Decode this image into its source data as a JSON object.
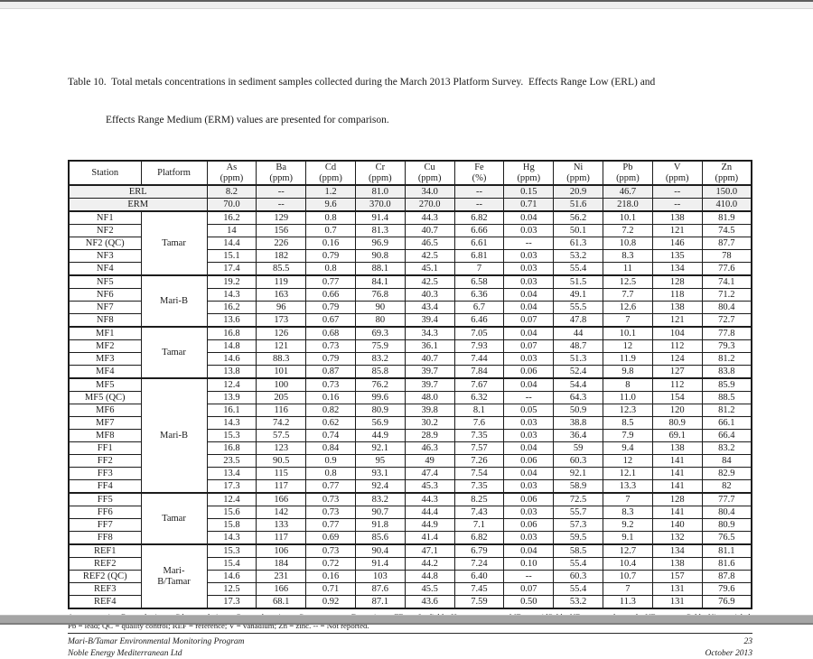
{
  "document": {
    "title": {
      "line1": "Table 10.  Total metals concentrations in sediment samples collected during the March 2013 Platform Survey.  Effects Range Low (ERL) and",
      "line2": "Effects Range Medium (ERM) values are presented for comparison."
    },
    "table": {
      "columns": [
        {
          "label": "Station",
          "unit": ""
        },
        {
          "label": "Platform",
          "unit": ""
        },
        {
          "label": "As",
          "unit": "(ppm)"
        },
        {
          "label": "Ba",
          "unit": "(ppm)"
        },
        {
          "label": "Cd",
          "unit": "(ppm)"
        },
        {
          "label": "Cr",
          "unit": "(ppm)"
        },
        {
          "label": "Cu",
          "unit": "(ppm)"
        },
        {
          "label": "Fe",
          "unit": "(%)"
        },
        {
          "label": "Hg",
          "unit": "(ppm)"
        },
        {
          "label": "Ni",
          "unit": "(ppm)"
        },
        {
          "label": "Pb",
          "unit": "(ppm)"
        },
        {
          "label": "V",
          "unit": "(ppm)"
        },
        {
          "label": "Zn",
          "unit": "(ppm)"
        }
      ],
      "reference_rows": [
        {
          "label": "ERL",
          "values": [
            "8.2",
            "--",
            "1.2",
            "81.0",
            "34.0",
            "--",
            "0.15",
            "20.9",
            "46.7",
            "--",
            "150.0"
          ]
        },
        {
          "label": "ERM",
          "values": [
            "70.0",
            "--",
            "9.6",
            "370.0",
            "270.0",
            "--",
            "0.71",
            "51.6",
            "218.0",
            "--",
            "410.0"
          ]
        }
      ],
      "groups": [
        {
          "platform": "Tamar",
          "rows": [
            {
              "station": "NF1",
              "values": [
                "16.2",
                "129",
                "0.8",
                "91.4",
                "44.3",
                "6.82",
                "0.04",
                "56.2",
                "10.1",
                "138",
                "81.9"
              ]
            },
            {
              "station": "NF2",
              "values": [
                "14",
                "156",
                "0.7",
                "81.3",
                "40.7",
                "6.66",
                "0.03",
                "50.1",
                "7.2",
                "121",
                "74.5"
              ]
            },
            {
              "station": "NF2 (QC)",
              "values": [
                "14.4",
                "226",
                "0.16",
                "96.9",
                "46.5",
                "6.61",
                "--",
                "61.3",
                "10.8",
                "146",
                "87.7"
              ]
            },
            {
              "station": "NF3",
              "values": [
                "15.1",
                "182",
                "0.79",
                "90.8",
                "42.5",
                "6.81",
                "0.03",
                "53.2",
                "8.3",
                "135",
                "78"
              ]
            },
            {
              "station": "NF4",
              "values": [
                "17.4",
                "85.5",
                "0.8",
                "88.1",
                "45.1",
                "7",
                "0.03",
                "55.4",
                "11",
                "134",
                "77.6"
              ]
            }
          ]
        },
        {
          "platform": "Mari-B",
          "rows": [
            {
              "station": "NF5",
              "values": [
                "19.2",
                "119",
                "0.77",
                "84.1",
                "42.5",
                "6.58",
                "0.03",
                "51.5",
                "12.5",
                "128",
                "74.1"
              ]
            },
            {
              "station": "NF6",
              "values": [
                "14.3",
                "163",
                "0.66",
                "76.8",
                "40.3",
                "6.36",
                "0.04",
                "49.1",
                "7.7",
                "118",
                "71.2"
              ]
            },
            {
              "station": "NF7",
              "values": [
                "16.2",
                "96",
                "0.79",
                "90",
                "43.4",
                "6.7",
                "0.04",
                "55.5",
                "12.6",
                "138",
                "80.4"
              ]
            },
            {
              "station": "NF8",
              "values": [
                "13.6",
                "173",
                "0.67",
                "80",
                "39.4",
                "6.46",
                "0.07",
                "47.8",
                "7",
                "121",
                "72.7"
              ]
            }
          ]
        },
        {
          "platform": "Tamar",
          "rows": [
            {
              "station": "MF1",
              "values": [
                "16.8",
                "126",
                "0.68",
                "69.3",
                "34.3",
                "7.05",
                "0.04",
                "44",
                "10.1",
                "104",
                "77.8"
              ]
            },
            {
              "station": "MF2",
              "values": [
                "14.8",
                "121",
                "0.73",
                "75.9",
                "36.1",
                "7.93",
                "0.07",
                "48.7",
                "12",
                "112",
                "79.3"
              ]
            },
            {
              "station": "MF3",
              "values": [
                "14.6",
                "88.3",
                "0.79",
                "83.2",
                "40.7",
                "7.44",
                "0.03",
                "51.3",
                "11.9",
                "124",
                "81.2"
              ]
            },
            {
              "station": "MF4",
              "values": [
                "13.8",
                "101",
                "0.87",
                "85.8",
                "39.7",
                "7.84",
                "0.06",
                "52.4",
                "9.8",
                "127",
                "83.8"
              ]
            }
          ]
        },
        {
          "platform": "Mari-B",
          "rows": [
            {
              "station": "MF5",
              "values": [
                "12.4",
                "100",
                "0.73",
                "76.2",
                "39.7",
                "7.67",
                "0.04",
                "54.4",
                "8",
                "112",
                "85.9"
              ]
            },
            {
              "station": "MF5 (QC)",
              "values": [
                "13.9",
                "205",
                "0.16",
                "99.6",
                "48.0",
                "6.32",
                "--",
                "64.3",
                "11.0",
                "154",
                "88.5"
              ]
            },
            {
              "station": "MF6",
              "values": [
                "16.1",
                "116",
                "0.82",
                "80.9",
                "39.8",
                "8.1",
                "0.05",
                "50.9",
                "12.3",
                "120",
                "81.2"
              ]
            },
            {
              "station": "MF7",
              "values": [
                "14.3",
                "74.2",
                "0.62",
                "56.9",
                "30.2",
                "7.6",
                "0.03",
                "38.8",
                "8.5",
                "80.9",
                "66.1"
              ]
            },
            {
              "station": "MF8",
              "values": [
                "15.3",
                "57.5",
                "0.74",
                "44.9",
                "28.9",
                "7.35",
                "0.03",
                "36.4",
                "7.9",
                "69.1",
                "66.4"
              ]
            },
            {
              "station": "FF1",
              "values": [
                "16.8",
                "123",
                "0.84",
                "92.1",
                "46.3",
                "7.57",
                "0.04",
                "59",
                "9.4",
                "138",
                "83.2"
              ]
            },
            {
              "station": "FF2",
              "values": [
                "23.5",
                "90.5",
                "0.9",
                "95",
                "49",
                "7.26",
                "0.06",
                "60.3",
                "12",
                "141",
                "84"
              ]
            },
            {
              "station": "FF3",
              "values": [
                "13.4",
                "115",
                "0.8",
                "93.1",
                "47.4",
                "7.54",
                "0.04",
                "92.1",
                "12.1",
                "141",
                "82.9"
              ]
            },
            {
              "station": "FF4",
              "values": [
                "17.3",
                "117",
                "0.77",
                "92.4",
                "45.3",
                "7.35",
                "0.03",
                "58.9",
                "13.3",
                "141",
                "82"
              ]
            }
          ]
        },
        {
          "platform": "Tamar",
          "rows": [
            {
              "station": "FF5",
              "values": [
                "12.4",
                "166",
                "0.73",
                "83.2",
                "44.3",
                "8.25",
                "0.06",
                "72.5",
                "7",
                "128",
                "77.7"
              ]
            },
            {
              "station": "FF6",
              "values": [
                "15.6",
                "142",
                "0.73",
                "90.7",
                "44.4",
                "7.43",
                "0.03",
                "55.7",
                "8.3",
                "141",
                "80.4"
              ]
            },
            {
              "station": "FF7",
              "values": [
                "15.8",
                "133",
                "0.77",
                "91.8",
                "44.9",
                "7.1",
                "0.06",
                "57.3",
                "9.2",
                "140",
                "80.9"
              ]
            },
            {
              "station": "FF8",
              "values": [
                "14.3",
                "117",
                "0.69",
                "85.6",
                "41.4",
                "6.82",
                "0.03",
                "59.5",
                "9.1",
                "132",
                "76.5"
              ]
            }
          ]
        },
        {
          "platform": "Mari-\nB/Tamar",
          "rows": [
            {
              "station": "REF1",
              "values": [
                "15.3",
                "106",
                "0.73",
                "90.4",
                "47.1",
                "6.79",
                "0.04",
                "58.5",
                "12.7",
                "134",
                "81.1"
              ]
            },
            {
              "station": "REF2",
              "values": [
                "15.4",
                "184",
                "0.72",
                "91.4",
                "44.2",
                "7.24",
                "0.10",
                "55.4",
                "10.4",
                "138",
                "81.6"
              ]
            },
            {
              "station": "REF2 (QC)",
              "values": [
                "14.6",
                "231",
                "0.16",
                "103",
                "44.8",
                "6.40",
                "--",
                "60.3",
                "10.7",
                "157",
                "87.8"
              ]
            },
            {
              "station": "REF3",
              "values": [
                "12.5",
                "166",
                "0.71",
                "87.6",
                "45.5",
                "7.45",
                "0.07",
                "55.4",
                "7",
                "131",
                "79.6"
              ]
            },
            {
              "station": "REF4",
              "values": [
                "17.3",
                "68.1",
                "0.92",
                "87.1",
                "43.6",
                "7.59",
                "0.50",
                "53.2",
                "11.3",
                "131",
                "76.9"
              ]
            }
          ]
        }
      ]
    },
    "footnote": {
      "line1": "As = arsenic; Ba = barium; Cd = cadmium; Cr = chromium; Cu = copper; Fe = iron; FF = far-field; Hg = mercury; MF = midfield; ND = not detected; NF = near-field; Ni = nickel;",
      "line2": "Pb = lead; QC = quality control; REF = reference; V = vanadium; Zn = zinc. -- = Not reported."
    },
    "footer": {
      "program": "Mari-B/Tamar Environmental Monitoring Program",
      "company": "Noble Energy Mediterranean Ltd",
      "page_number": "23",
      "date": "October 2013"
    }
  }
}
